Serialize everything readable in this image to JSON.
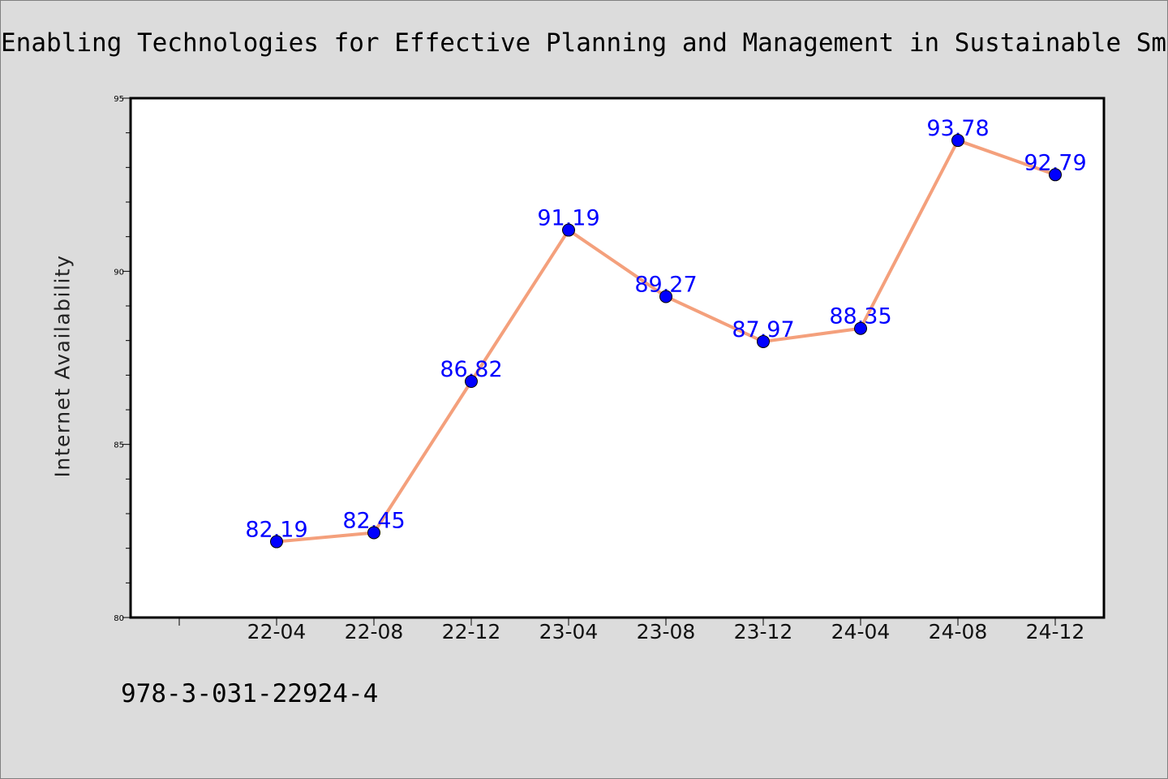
{
  "chart_data": {
    "type": "line",
    "title": "Enabling Technologies for Effective Planning and Management in Sustainable Smart Cities",
    "xlabel": "",
    "ylabel": "Internet Availability",
    "categories": [
      "22-04",
      "22-08",
      "22-12",
      "23-04",
      "23-08",
      "23-12",
      "24-04",
      "24-08",
      "24-12"
    ],
    "series": [
      {
        "values": [
          82.19,
          82.45,
          86.82,
          91.19,
          89.27,
          87.97,
          88.35,
          93.78,
          92.79
        ],
        "data_labels": [
          "82.19",
          "82.45",
          "86.82",
          "91.19",
          "89.27",
          "87.97",
          "88.35",
          "93.78",
          "92.79"
        ],
        "line_color": "#f4a07c",
        "marker_color": "#0000ff"
      }
    ],
    "ylim": [
      80,
      95
    ],
    "yticks": [
      80,
      85,
      90,
      95
    ],
    "ytick_labels": [
      "80",
      "85",
      "90",
      "95"
    ],
    "yminor_step": 1,
    "grid": false,
    "legend": "none"
  },
  "footer": {
    "isbn": "978-3-031-22924-4"
  }
}
